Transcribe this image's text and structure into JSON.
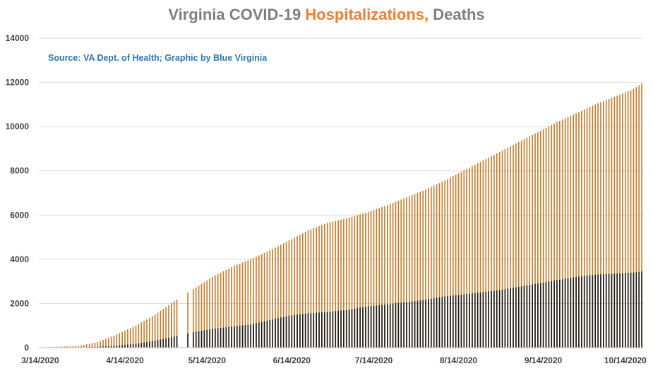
{
  "title": {
    "part1": "Virginia COVID-19 ",
    "part2": "Hospitalizations,",
    "part3": " Deaths"
  },
  "source": "Source: VA Dept. of Health; Graphic by Blue Virginia",
  "colors": {
    "hospitalizations": "#c57b2a",
    "deaths": "#1a1a1a",
    "grid": "#d9d9d9",
    "title_gray": "#7f7f7f",
    "title_orange": "#ed7d31",
    "source_blue": "#2e75b6"
  },
  "chart_data": {
    "type": "bar",
    "title": "Virginia COVID-19 Hospitalizations, Deaths",
    "xlabel": "",
    "ylabel": "",
    "ylim": [
      0,
      14000
    ],
    "yticks": [
      0,
      2000,
      4000,
      6000,
      8000,
      10000,
      12000,
      14000
    ],
    "x_start": "3/14/2020",
    "x_end": "10/20/2020",
    "xticks": [
      "3/14/2020",
      "4/14/2020",
      "5/14/2020",
      "6/14/2020",
      "7/14/2020",
      "8/14/2020",
      "9/14/2020",
      "10/14/2020"
    ],
    "grid": true,
    "legend": "none",
    "series": [
      {
        "name": "Hospitalizations",
        "points": [
          [
            "3/14/2020",
            10
          ],
          [
            "3/28/2020",
            80
          ],
          [
            "4/4/2020",
            250
          ],
          [
            "4/11/2020",
            600
          ],
          [
            "4/18/2020",
            1000
          ],
          [
            "4/25/2020",
            1500
          ],
          [
            "5/2/2020",
            2100
          ],
          [
            "5/9/2020",
            2650
          ],
          [
            "5/16/2020",
            3200
          ],
          [
            "5/23/2020",
            3650
          ],
          [
            "5/30/2020",
            4000
          ],
          [
            "6/6/2020",
            4400
          ],
          [
            "6/13/2020",
            4850
          ],
          [
            "6/20/2020",
            5300
          ],
          [
            "6/27/2020",
            5650
          ],
          [
            "7/4/2020",
            5850
          ],
          [
            "7/11/2020",
            6100
          ],
          [
            "7/18/2020",
            6400
          ],
          [
            "7/25/2020",
            6750
          ],
          [
            "8/1/2020",
            7100
          ],
          [
            "8/8/2020",
            7500
          ],
          [
            "8/15/2020",
            7950
          ],
          [
            "8/22/2020",
            8400
          ],
          [
            "8/29/2020",
            8850
          ],
          [
            "9/5/2020",
            9300
          ],
          [
            "9/12/2020",
            9750
          ],
          [
            "9/19/2020",
            10200
          ],
          [
            "9/26/2020",
            10600
          ],
          [
            "10/3/2020",
            11000
          ],
          [
            "10/10/2020",
            11350
          ],
          [
            "10/17/2020",
            11700
          ],
          [
            "10/20/2020",
            11950
          ]
        ]
      },
      {
        "name": "Deaths",
        "points": [
          [
            "3/14/2020",
            2
          ],
          [
            "3/28/2020",
            10
          ],
          [
            "4/4/2020",
            40
          ],
          [
            "4/11/2020",
            90
          ],
          [
            "4/18/2020",
            180
          ],
          [
            "4/25/2020",
            320
          ],
          [
            "5/2/2020",
            500
          ],
          [
            "5/9/2020",
            700
          ],
          [
            "5/16/2020",
            850
          ],
          [
            "5/23/2020",
            950
          ],
          [
            "5/30/2020",
            1050
          ],
          [
            "6/6/2020",
            1250
          ],
          [
            "6/13/2020",
            1450
          ],
          [
            "6/20/2020",
            1550
          ],
          [
            "6/27/2020",
            1620
          ],
          [
            "7/4/2020",
            1700
          ],
          [
            "7/11/2020",
            1850
          ],
          [
            "7/18/2020",
            1950
          ],
          [
            "7/25/2020",
            2050
          ],
          [
            "8/1/2020",
            2150
          ],
          [
            "8/8/2020",
            2300
          ],
          [
            "8/15/2020",
            2400
          ],
          [
            "8/22/2020",
            2500
          ],
          [
            "8/29/2020",
            2600
          ],
          [
            "9/5/2020",
            2750
          ],
          [
            "9/12/2020",
            2900
          ],
          [
            "9/19/2020",
            3050
          ],
          [
            "9/26/2020",
            3200
          ],
          [
            "10/3/2020",
            3300
          ],
          [
            "10/10/2020",
            3350
          ],
          [
            "10/17/2020",
            3400
          ],
          [
            "10/20/2020",
            3450
          ]
        ]
      }
    ],
    "gaps": [
      "5/4/2020",
      "5/5/2020",
      "5/6/2020",
      "5/8/2020"
    ]
  }
}
